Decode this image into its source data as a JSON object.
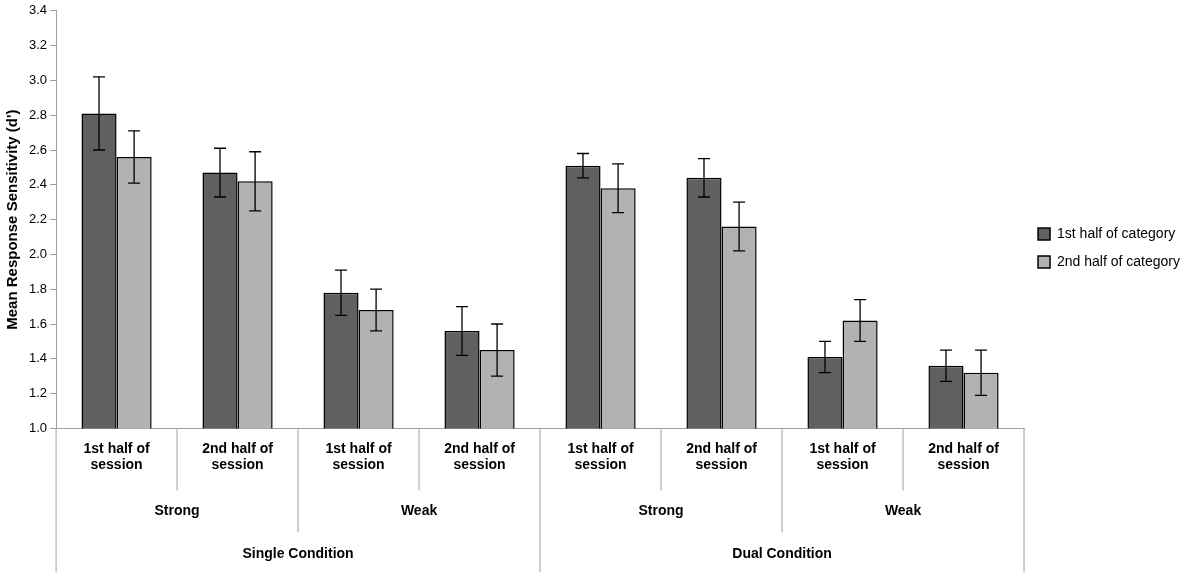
{
  "chart_data": {
    "type": "bar",
    "ylabel": "Mean Response Sensitivity (d')",
    "categories": [
      "1st half of session",
      "2nd half of session",
      "1st half of session",
      "2nd half of session",
      "1st half of session",
      "2nd half of session",
      "1st half of session",
      "2nd half of session"
    ],
    "series": [
      {
        "name": "1st half of category",
        "color": "#606060",
        "values": [
          2.81,
          2.47,
          1.78,
          1.56,
          2.51,
          2.44,
          1.41,
          1.36
        ],
        "errors": [
          0.21,
          0.14,
          0.13,
          0.14,
          0.07,
          0.11,
          0.09,
          0.09
        ]
      },
      {
        "name": "2nd half of category",
        "color": "#b2b2b2",
        "values": [
          2.56,
          2.42,
          1.68,
          1.45,
          2.38,
          2.16,
          1.62,
          1.32
        ],
        "errors": [
          0.15,
          0.17,
          0.12,
          0.15,
          0.14,
          0.14,
          0.12,
          0.13
        ]
      }
    ],
    "ylim": [
      1.0,
      3.4
    ],
    "yticks": [
      {
        "value": 1.0,
        "label": "1.0"
      },
      {
        "value": 1.2,
        "label": "1.2"
      },
      {
        "value": 1.4,
        "label": "1.4"
      },
      {
        "value": 1.6,
        "label": "1.6"
      },
      {
        "value": 1.8,
        "label": "1.8"
      },
      {
        "value": 2.0,
        "label": "2.0"
      },
      {
        "value": 2.2,
        "label": "2.2"
      },
      {
        "value": 2.4,
        "label": "2.4"
      },
      {
        "value": 2.6,
        "label": "2.6"
      },
      {
        "value": 2.8,
        "label": "2.8"
      },
      {
        "value": 3.0,
        "label": "3.0"
      },
      {
        "value": 3.2,
        "label": "3.2"
      },
      {
        "value": 3.4,
        "label": "3.4"
      }
    ],
    "annotations": [
      "Strong",
      "Weak",
      "Strong",
      "Weak",
      "Single Condition",
      "Dual Condition"
    ],
    "grid": false,
    "legend": "right"
  }
}
